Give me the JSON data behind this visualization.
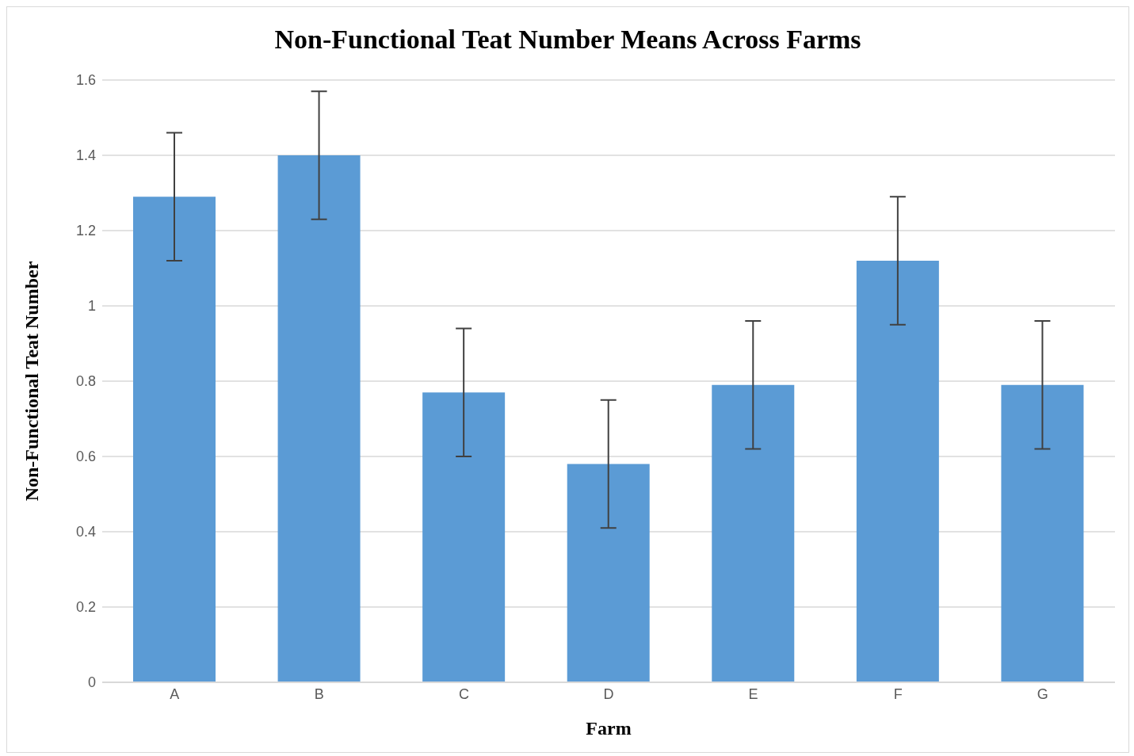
{
  "chart_data": {
    "type": "bar",
    "title": "Non-Functional Teat Number Means Across Farms",
    "xlabel": "Farm",
    "ylabel": "Non-Functional Teat Number",
    "categories": [
      "A",
      "B",
      "C",
      "D",
      "E",
      "F",
      "G"
    ],
    "values": [
      1.29,
      1.4,
      0.77,
      0.58,
      0.79,
      1.12,
      0.79
    ],
    "errors": [
      0.17,
      0.17,
      0.17,
      0.17,
      0.17,
      0.17,
      0.17
    ],
    "color": "#5b9bd5",
    "ylim": [
      0,
      1.6
    ],
    "yticks": [
      0,
      0.2,
      0.4,
      0.6,
      0.8,
      1,
      1.2,
      1.4,
      1.6
    ],
    "grid": "y"
  }
}
